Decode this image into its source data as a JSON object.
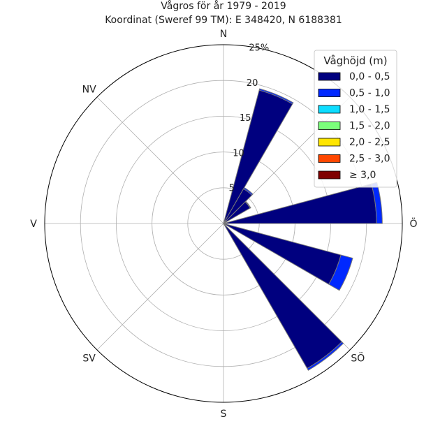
{
  "chart_data": {
    "type": "polar-stacked-bar",
    "title": "Vågros för år 1979 - 2019",
    "subtitle": "Koordinat (Sweref 99 TM): E 348420, N 6188381",
    "directions": [
      {
        "label": "N",
        "angle": 0
      },
      {
        "label": "NV",
        "angle": 315
      },
      {
        "label": "V",
        "angle": 270
      },
      {
        "label": "SV",
        "angle": 225
      },
      {
        "label": "S",
        "angle": 180
      },
      {
        "label": "SÖ",
        "angle": 135
      },
      {
        "label": "Ö",
        "angle": 90
      }
    ],
    "radial_ticks": [
      "5",
      "10",
      "15",
      "20",
      "25%"
    ],
    "rmax": 25,
    "legend": {
      "title": "Våghöjd (m)",
      "placement": "top-right",
      "items": [
        {
          "label": "0,0 - 0,5",
          "color": "#00007f"
        },
        {
          "label": "0,5 - 1,0",
          "color": "#0028ff"
        },
        {
          "label": "1,0 - 1,5",
          "color": "#0dddff"
        },
        {
          "label": "1,5 - 2,0",
          "color": "#7bff7b"
        },
        {
          "label": "2,0 - 2,5",
          "color": "#ffe500"
        },
        {
          "label": "2,5 - 3,0",
          "color": "#ff4700"
        },
        {
          "label": "≥ 3,0",
          "color": "#7f0000"
        }
      ]
    },
    "sectors": [
      {
        "angle_start": 15,
        "angle_end": 30,
        "values": [
          19.3,
          0.2
        ]
      },
      {
        "angle_start": 30,
        "angle_end": 45,
        "values": [
          5.6,
          0.2
        ]
      },
      {
        "angle_start": 45,
        "angle_end": 60,
        "values": [
          4.3,
          0.1
        ]
      },
      {
        "angle_start": 75,
        "angle_end": 90,
        "values": [
          21.4,
          0.8
        ]
      },
      {
        "angle_start": 105,
        "angle_end": 120,
        "values": [
          17.0,
          1.7
        ]
      },
      {
        "angle_start": 120,
        "angle_end": 135,
        "values": [
          0.3
        ]
      },
      {
        "angle_start": 135,
        "angle_end": 150,
        "values": [
          23.4,
          0.3
        ]
      }
    ]
  }
}
